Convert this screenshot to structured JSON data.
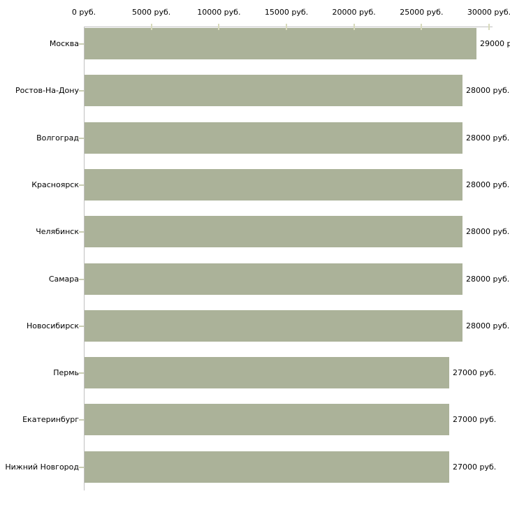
{
  "chart_data": {
    "type": "bar",
    "orientation": "horizontal",
    "title": "",
    "xlabel": "",
    "ylabel": "",
    "unit": "руб.",
    "xlim": [
      0,
      30000
    ],
    "grid": false,
    "legend": null,
    "x_ticks": [
      {
        "value": 0,
        "label": "0 руб."
      },
      {
        "value": 5000,
        "label": "5000 руб."
      },
      {
        "value": 10000,
        "label": "10000 руб."
      },
      {
        "value": 15000,
        "label": "15000 руб."
      },
      {
        "value": 20000,
        "label": "20000 руб."
      },
      {
        "value": 25000,
        "label": "25000 руб."
      },
      {
        "value": 30000,
        "label": "30000 руб."
      }
    ],
    "rows": [
      {
        "category": "Москва",
        "value": 29000,
        "value_label": "29000 р"
      },
      {
        "category": "Ростов-На-Дону",
        "value": 28000,
        "value_label": "28000 руб."
      },
      {
        "category": "Волгоград",
        "value": 28000,
        "value_label": "28000 руб."
      },
      {
        "category": "Красноярск",
        "value": 28000,
        "value_label": "28000 руб."
      },
      {
        "category": "Челябинск",
        "value": 28000,
        "value_label": "28000 руб."
      },
      {
        "category": "Самара",
        "value": 28000,
        "value_label": "28000 руб."
      },
      {
        "category": "Новосибирск",
        "value": 28000,
        "value_label": "28000 руб."
      },
      {
        "category": "Пермь",
        "value": 27000,
        "value_label": "27000 руб."
      },
      {
        "category": "Екатеринбург",
        "value": 27000,
        "value_label": "27000 руб."
      },
      {
        "category": "Нижний Новгород",
        "value": 27000,
        "value_label": "27000 руб."
      }
    ],
    "colors": {
      "bar": "#abb299",
      "axis_line": "#c0c0c0",
      "tick_mark": "#d8dabc",
      "category_tick": "#c9cdb2",
      "text": "#000000",
      "background": "#ffffff"
    }
  }
}
